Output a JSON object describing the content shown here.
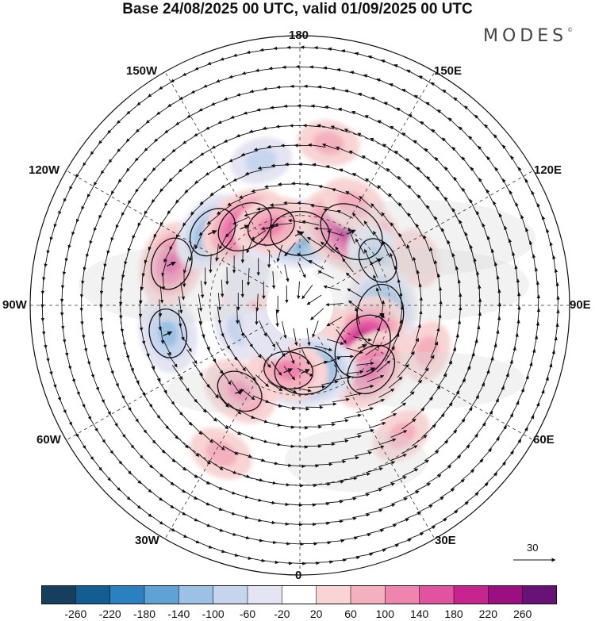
{
  "title": "Base 24/08/2025 00 UTC, valid 01/09/2025 00 UTC",
  "brand": {
    "name": "MODES",
    "mark": "©"
  },
  "longitude_labels": {
    "lon_180": "180",
    "lon_150E": "150E",
    "lon_120E": "120E",
    "lon_90E": "90E",
    "lon_60E": "60E",
    "lon_30E": "30E",
    "lon_0": "0",
    "lon_30W": "30W",
    "lon_60W": "60W",
    "lon_90W": "90W",
    "lon_120W": "120W",
    "lon_150W": "150W"
  },
  "reference_vector": {
    "label": "30"
  },
  "colorbar": {
    "ticks": [
      "-260",
      "-220",
      "-180",
      "-140",
      "-100",
      "-60",
      "-20",
      "20",
      "60",
      "100",
      "140",
      "180",
      "220",
      "260"
    ],
    "colors": [
      "#163f5e",
      "#125d91",
      "#2b80bf",
      "#5fa3d6",
      "#9bc2e4",
      "#c6d5ee",
      "#e4e4f2",
      "#ffffff",
      "#f8d4d4",
      "#f4b0bd",
      "#ef84ae",
      "#e153a0",
      "#c8248d",
      "#9a0f81",
      "#681277"
    ]
  },
  "anomalies": [
    {
      "lon": 180,
      "colat": 24,
      "value": -190
    },
    {
      "lon": 170,
      "colat": 55,
      "value": 60
    },
    {
      "lon": 145,
      "colat": 30,
      "value": 240
    },
    {
      "lon": 152,
      "colat": 38,
      "value": 80
    },
    {
      "lon": 120,
      "colat": 30,
      "value": -110
    },
    {
      "lon": 112,
      "colat": 42,
      "value": 50
    },
    {
      "lon": 96,
      "colat": 25,
      "value": 80
    },
    {
      "lon": 83,
      "colat": 27,
      "value": -210
    },
    {
      "lon": 57,
      "colat": 25,
      "value": 240
    },
    {
      "lon": 48,
      "colat": 32,
      "value": 160
    },
    {
      "lon": 38,
      "colat": 55,
      "value": 60
    },
    {
      "lon": 40,
      "colat": 10,
      "value": 40
    },
    {
      "lon": 5,
      "colat": 22,
      "value": -210
    },
    {
      "lon": -10,
      "colat": 22,
      "value": 130
    },
    {
      "lon": -35,
      "colat": 35,
      "value": 120
    },
    {
      "lon": -28,
      "colat": 56,
      "value": 70
    },
    {
      "lon": -78,
      "colat": 45,
      "value": -130
    },
    {
      "lon": -82,
      "colat": 18,
      "value": 90
    },
    {
      "lon": -68,
      "colat": 22,
      "value": -60
    },
    {
      "lon": -108,
      "colat": 45,
      "value": 150
    },
    {
      "lon": -130,
      "colat": 38,
      "value": -150
    },
    {
      "lon": -145,
      "colat": 32,
      "value": 180
    },
    {
      "lon": -160,
      "colat": 28,
      "value": 120
    },
    {
      "lon": -165,
      "colat": 50,
      "value": -60
    },
    {
      "lon": -118,
      "colat": 20,
      "value": -40
    },
    {
      "lon": 70,
      "colat": 45,
      "value": 60
    },
    {
      "lon": -50,
      "colat": 15,
      "value": -40
    }
  ]
}
